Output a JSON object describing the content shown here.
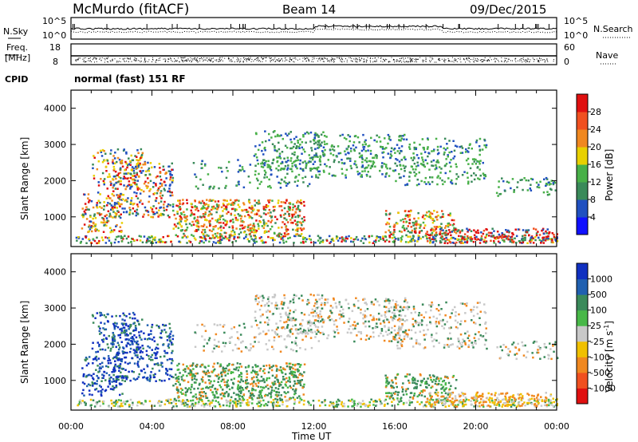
{
  "header": {
    "station": "McMurdo (fitACF)",
    "beam": "Beam 14",
    "date": "09/Dec/2015"
  },
  "noise_panel": {
    "left_label": "N.Sky",
    "right_label": "N.Search",
    "left_ticks": [
      "10^5",
      "10^0"
    ],
    "right_ticks": [
      "10^5",
      "10^0"
    ]
  },
  "freq_panel": {
    "left_label_1": "Freq.",
    "left_label_2": "[MHz]",
    "right_label": "Nave",
    "left_ticks": [
      "18",
      "8"
    ],
    "right_ticks": [
      "60",
      "0"
    ]
  },
  "cpid": {
    "label": "CPID",
    "text": "normal (fast) 151 RF"
  },
  "chart_data": [
    {
      "type": "heatmap",
      "name": "power",
      "ylabel": "Slant Range [km]",
      "yticks": [
        1000,
        2000,
        3000,
        4000
      ],
      "ylim": [
        180,
        4500
      ],
      "colorbar": {
        "label": "Power [dB]",
        "ticks": [
          "4",
          "8",
          "12",
          "16",
          "20",
          "24",
          "28"
        ],
        "colors": [
          "#1010ff",
          "#2050c0",
          "#3a8a5a",
          "#48b048",
          "#e8d000",
          "#f08820",
          "#f05020",
          "#e01010"
        ]
      }
    },
    {
      "type": "heatmap",
      "name": "velocity",
      "ylabel": "Slant Range [km]",
      "yticks": [
        1000,
        2000,
        3000,
        4000
      ],
      "ylim": [
        180,
        4500
      ],
      "xlabel": "Time UT",
      "xticks": [
        "00:00",
        "04:00",
        "08:00",
        "12:00",
        "16:00",
        "20:00",
        "00:00"
      ],
      "colorbar": {
        "label": "Velocity [m s",
        "label_sup": "-1",
        "label_end": "]",
        "ticks": [
          "1000",
          "500",
          "100",
          "25",
          "-25",
          "-100",
          "-500",
          "-1000"
        ],
        "colors": [
          "#1030c0",
          "#2060b0",
          "#3a8a5a",
          "#48b848",
          "#c8c8c8",
          "#f0c000",
          "#f08820",
          "#f05020",
          "#e01010"
        ]
      }
    }
  ]
}
